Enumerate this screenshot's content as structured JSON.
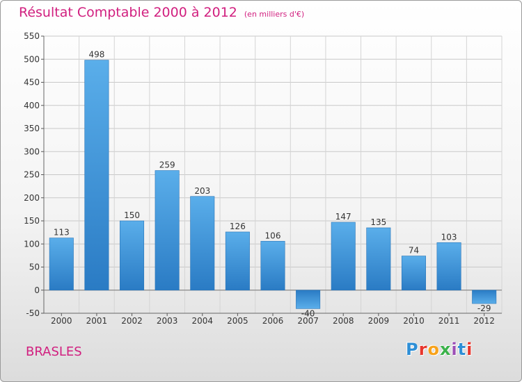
{
  "header": {
    "title": "Résultat Comptable 2000 à 2012",
    "subtitle": "(en milliers d'€)"
  },
  "footer": {
    "commune": "BRASLES",
    "logo_text": "Proxiti",
    "logo_colors": [
      "#2e8fd6",
      "#e7362d",
      "#f7a21b",
      "#3bb24a",
      "#9c4fb5",
      "#2e8fd6",
      "#e7362d"
    ]
  },
  "colors": {
    "bar_top": "#5aaeea",
    "bar_bottom": "#2a7bc4",
    "accent": "#d11f7f"
  },
  "chart_data": {
    "type": "bar",
    "title": "Résultat Comptable 2000 à 2012",
    "subtitle": "(en milliers d'€)",
    "categories": [
      "2000",
      "2001",
      "2002",
      "2003",
      "2004",
      "2005",
      "2006",
      "2007",
      "2008",
      "2009",
      "2010",
      "2011",
      "2012"
    ],
    "values": [
      113,
      498,
      150,
      259,
      203,
      126,
      106,
      -40,
      147,
      135,
      74,
      103,
      -29
    ],
    "ylim": [
      -50,
      550
    ],
    "yticks": [
      -50,
      0,
      50,
      100,
      150,
      200,
      250,
      300,
      350,
      400,
      450,
      500,
      550
    ],
    "grid": true,
    "xlabel": "",
    "ylabel": ""
  }
}
